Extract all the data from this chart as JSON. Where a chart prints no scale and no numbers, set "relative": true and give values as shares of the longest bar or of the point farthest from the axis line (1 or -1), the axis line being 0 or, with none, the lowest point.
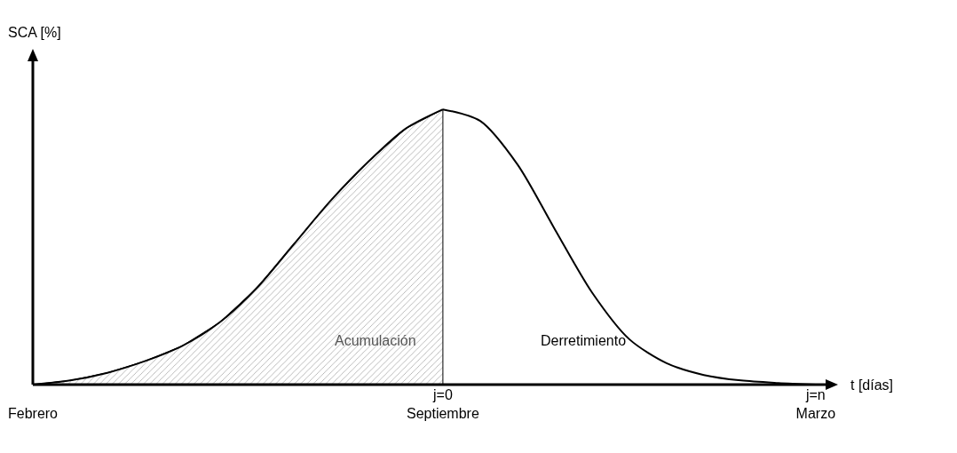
{
  "chart_data": {
    "type": "line",
    "relative": true,
    "xlabel": "t [días]",
    "ylabel": "SCA [%]",
    "categories": [
      "Febrero",
      null,
      null,
      null,
      null,
      null,
      null,
      null,
      null,
      null,
      null,
      "j=0\nSeptiembre",
      null,
      null,
      null,
      null,
      null,
      null,
      null,
      null,
      null,
      "j=n\nMarzo"
    ],
    "grid": false,
    "legend": false,
    "marker": "none",
    "line_style": "solid",
    "series": [
      {
        "name": "Acumulación",
        "type": "area",
        "color": "#000000",
        "values": [
          0,
          0.015,
          0.043,
          0.085,
          0.14,
          0.225,
          0.35,
          0.51,
          0.67,
          0.81,
          0.93,
          1,
          null,
          null,
          null,
          null,
          null,
          null,
          null,
          null,
          null,
          null
        ]
      },
      {
        "name": "Derretimiento",
        "color": "#000000",
        "values": [
          null,
          null,
          null,
          null,
          null,
          null,
          null,
          null,
          null,
          null,
          null,
          1,
          0.958,
          0.8,
          0.565,
          0.335,
          0.165,
          0.078,
          0.035,
          0.015,
          0.006,
          0
        ]
      }
    ]
  }
}
